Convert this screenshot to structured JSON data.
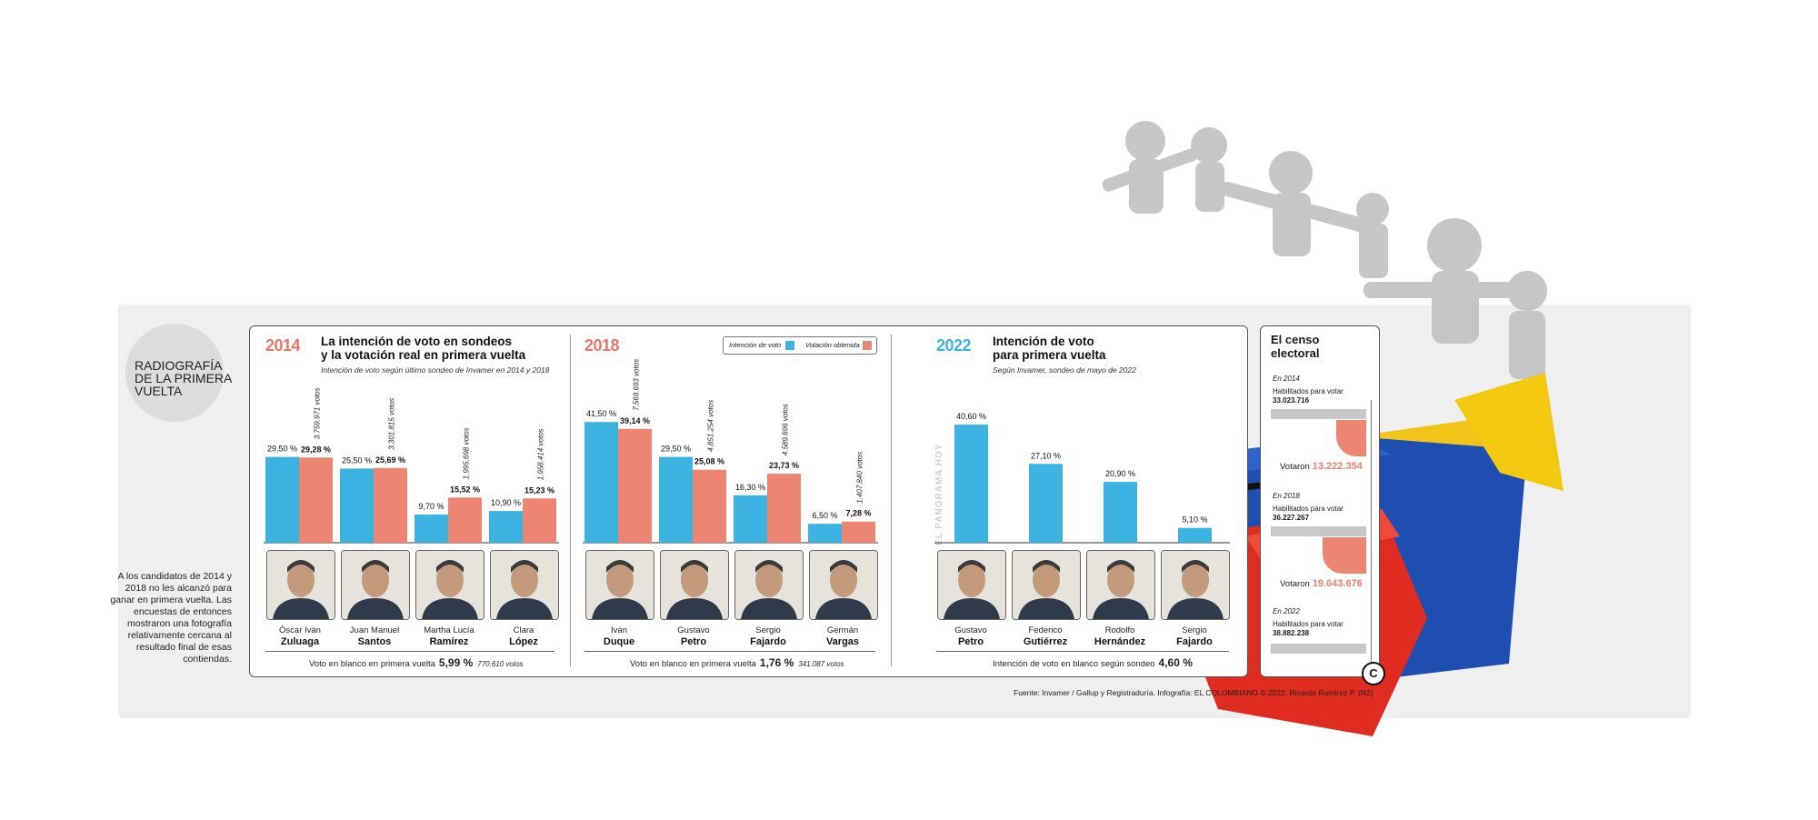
{
  "badge_title": "RADIOGRAFÍA DE LA PRIMERA VUELTA",
  "side_note": "A los candidatos de 2014 y 2018 no les alcanzó para ganar en primera vuelta. Las encuestas de entonces mostraron una fotografía relativamente cercana al resultado final de esas contiendas.",
  "colors": {
    "intention": "#3cb3e0",
    "obtained": "#ec8571",
    "year_2014": "#e5776a",
    "year_2018": "#e5776a",
    "year_2022": "#3cb3e0"
  },
  "legend": {
    "intention": "Intención de voto",
    "obtained": "Votación obtenida"
  },
  "panel_2014": {
    "year": "2014",
    "heading_1": "La intención de voto en sondeos",
    "heading_2": "y la votación real en primera vuelta",
    "sub": "Intención de voto según último sondeo de Invamer en 2014 y 2018",
    "blank_label": "Voto en blanco en primera vuelta",
    "blank_pct": "5,99 %",
    "blank_votes": "770.610 votos"
  },
  "panel_2018": {
    "year": "2018",
    "blank_label": "Voto en blanco en primera vuelta",
    "blank_pct": "1,76 %",
    "blank_votes": "341.087 votos"
  },
  "panel_2022": {
    "year": "2022",
    "heading_1": "Intención de voto",
    "heading_2": "para primera vuelta",
    "sub": "Según Invamer, sondeo de mayo de 2022",
    "blank_label": "Intención de voto en blanco según sondeo",
    "blank_pct": "4,60 %"
  },
  "watermark": "EL PANORAMA HOY",
  "chart_data": [
    {
      "type": "bar",
      "year": "2014",
      "categories": [
        "Óscar Iván Zuluaga",
        "Juan Manuel Santos",
        "Martha Lucía Ramírez",
        "Clara López"
      ],
      "first_names": [
        "Óscar Iván",
        "Juan Manuel",
        "Martha Lucía",
        "Clara"
      ],
      "last_names": [
        "Zuluaga",
        "Santos",
        "Ramírez",
        "López"
      ],
      "series": [
        {
          "name": "Intención de voto",
          "values": [
            29.5,
            25.5,
            9.7,
            10.9
          ],
          "labels": [
            "29,50 %",
            "25,50 %",
            "9,70 %",
            "10,90 %"
          ]
        },
        {
          "name": "Votación obtenida",
          "values": [
            29.28,
            25.69,
            15.52,
            15.23
          ],
          "labels": [
            "29,28 %",
            "25,69 %",
            "15,52 %",
            "15,23 %"
          ],
          "votes": [
            "3.759.971 votos",
            "3.301.815 votos",
            "1.995.698 votos",
            "1.958.414 votos"
          ]
        }
      ]
    },
    {
      "type": "bar",
      "year": "2018",
      "categories": [
        "Iván Duque",
        "Gustavo Petro",
        "Sergio Fajardo",
        "Germán Vargas"
      ],
      "first_names": [
        "Iván",
        "Gustavo",
        "Sergio",
        "Germán"
      ],
      "last_names": [
        "Duque",
        "Petro",
        "Fajardo",
        "Vargas"
      ],
      "series": [
        {
          "name": "Intención de voto",
          "values": [
            41.5,
            29.5,
            16.3,
            6.5
          ],
          "labels": [
            "41,50 %",
            "29,50 %",
            "16,30 %",
            "6,50 %"
          ]
        },
        {
          "name": "Votación obtenida",
          "values": [
            39.14,
            25.08,
            23.73,
            7.28
          ],
          "labels": [
            "39,14 %",
            "25,08 %",
            "23,73 %",
            "7,28 %"
          ],
          "votes": [
            "7.569.693 votos",
            "4.851.254 votos",
            "4.589.696 votos",
            "1.407.840 votos"
          ]
        }
      ]
    },
    {
      "type": "bar",
      "year": "2022",
      "categories": [
        "Gustavo Petro",
        "Federico Gutiérrez",
        "Rodolfo Hernández",
        "Sergio Fajardo"
      ],
      "first_names": [
        "Gustavo",
        "Federico",
        "Rodolfo",
        "Sergio"
      ],
      "last_names": [
        "Petro",
        "Gutiérrez",
        "Hernández",
        "Fajardo"
      ],
      "series": [
        {
          "name": "Intención de voto",
          "values": [
            40.6,
            27.1,
            20.9,
            5.1
          ],
          "labels": [
            "40,60 %",
            "27,10 %",
            "20,90 %",
            "5,10 %"
          ]
        }
      ]
    }
  ],
  "census": {
    "title_1": "El censo",
    "title_2": "electoral",
    "y2014": {
      "year": "En 2014",
      "label": "Habilitados para votar",
      "eligible": "33.023.716",
      "voted_label": "Votaron",
      "voted": "13.222.354"
    },
    "y2018": {
      "year": "En 2018",
      "label": "Habilitados para votar",
      "eligible": "36.227.267",
      "voted_label": "Votaron",
      "voted": "19.643.676"
    },
    "y2022": {
      "year": "En 2022",
      "label": "Habilitados para votar",
      "eligible": "38.882.238"
    }
  },
  "source": "Fuente: Invamer / Gallup y Registraduría. Infografía: EL COLOMBIANO © 2022. Ricardo Ramírez P. (N2)",
  "logo": "C"
}
